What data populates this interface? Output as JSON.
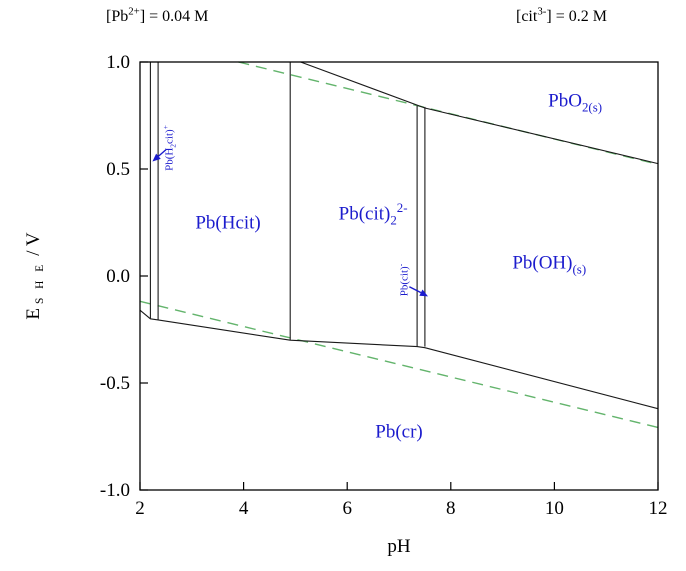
{
  "header": {
    "left_segments": [
      {
        "t": "[Pb"
      },
      {
        "t": "2+",
        "s": "sup"
      },
      {
        "t": "] = 0.04 M"
      }
    ],
    "right_segments": [
      {
        "t": "[cit"
      },
      {
        "t": "3-",
        "s": "sup"
      },
      {
        "t": "] = 0.2 M"
      }
    ]
  },
  "axes": {
    "y_title_segments": [
      {
        "t": "E"
      },
      {
        "t": "S H E",
        "s": "she"
      },
      {
        "t": "/  V"
      }
    ],
    "x_title": "pH"
  },
  "chart_data": {
    "type": "line",
    "title": "Pourbaix (Eh-pH) diagram for lead-citrate system",
    "xlabel": "pH",
    "ylabel": "E_SHE / V",
    "xlim": [
      2,
      12
    ],
    "ylim": [
      -1.0,
      1.0
    ],
    "grid": false,
    "x_ticks": [
      2,
      4,
      6,
      8,
      10,
      12
    ],
    "x_tick_labels": [
      "2",
      "4",
      "6",
      "8",
      "10",
      "12"
    ],
    "y_ticks": [
      1.0,
      0.5,
      0.0,
      -0.5,
      -1.0
    ],
    "y_tick_labels": [
      "1.0",
      "0.5",
      "0.0",
      "-0.5",
      "-1.0"
    ],
    "colors": {
      "boundary": "#1a1a1a",
      "water_line": "#63b46c",
      "label": "#1c1ccd",
      "axis": "#000000"
    },
    "series": [
      {
        "name": "pb-h2cit-left-boundary",
        "style": "solid",
        "points": [
          [
            2.2,
            1.0
          ],
          [
            2.2,
            -0.2
          ]
        ]
      },
      {
        "name": "pb-h2cit-right-boundary",
        "style": "solid",
        "points": [
          [
            2.35,
            1.0
          ],
          [
            2.35,
            -0.205
          ]
        ]
      },
      {
        "name": "pbhcit-pbcit2-boundary",
        "style": "solid",
        "points": [
          [
            4.9,
            1.0
          ],
          [
            4.9,
            -0.3
          ]
        ]
      },
      {
        "name": "pbcit-left-boundary",
        "style": "solid",
        "points": [
          [
            7.35,
            0.795
          ],
          [
            7.35,
            -0.33
          ]
        ]
      },
      {
        "name": "pbcit-right-boundary",
        "style": "solid",
        "points": [
          [
            7.5,
            0.79
          ],
          [
            7.5,
            -0.33
          ]
        ]
      },
      {
        "name": "pbo2-boundary",
        "style": "solid",
        "points": [
          [
            5.1,
            1.0
          ],
          [
            7.5,
            0.785
          ],
          [
            12,
            0.525
          ]
        ]
      },
      {
        "name": "pbcr-boundary",
        "style": "solid",
        "points": [
          [
            2,
            -0.16
          ],
          [
            2.2,
            -0.2
          ],
          [
            2.35,
            -0.205
          ],
          [
            4.9,
            -0.3
          ],
          [
            7.35,
            -0.33
          ],
          [
            7.5,
            -0.335
          ],
          [
            12,
            -0.62
          ]
        ]
      },
      {
        "name": "o2-h2o-water-line",
        "style": "dashed",
        "points": [
          [
            3.9,
            1.0
          ],
          [
            12,
            0.522
          ]
        ]
      },
      {
        "name": "h2-h2o-water-line",
        "style": "dashed",
        "points": [
          [
            2,
            -0.118
          ],
          [
            12,
            -0.708
          ]
        ]
      }
    ],
    "region_labels": [
      {
        "id": "pbo2",
        "x": 10.4,
        "y": 0.82,
        "rot": 0,
        "size": 19,
        "segments": [
          {
            "t": "PbO"
          },
          {
            "t": "2(s)",
            "s": "sub"
          }
        ]
      },
      {
        "id": "pbhcit",
        "x": 3.7,
        "y": 0.25,
        "rot": 0,
        "size": 19,
        "segments": [
          {
            "t": "Pb(Hcit)"
          }
        ]
      },
      {
        "id": "pbcit2",
        "x": 6.5,
        "y": 0.29,
        "rot": 0,
        "size": 19,
        "segments": [
          {
            "t": "Pb(cit)"
          },
          {
            "t": "2",
            "s": "sub"
          },
          {
            "t": "2-",
            "s": "sup"
          }
        ]
      },
      {
        "id": "pboh",
        "x": 9.9,
        "y": 0.06,
        "rot": 0,
        "size": 19,
        "segments": [
          {
            "t": "Pb(OH)"
          },
          {
            "t": "(s)",
            "s": "sub"
          }
        ]
      },
      {
        "id": "pbcr",
        "x": 7.0,
        "y": -0.73,
        "rot": 0,
        "size": 19,
        "segments": [
          {
            "t": "Pb(cr)"
          }
        ]
      },
      {
        "id": "pbh2cit",
        "x": 2.58,
        "y": 0.6,
        "rot": -90,
        "size": 11,
        "segments": [
          {
            "t": "Pb(H"
          },
          {
            "t": "2",
            "s": "sub"
          },
          {
            "t": "cit)"
          },
          {
            "t": "+",
            "s": "sup"
          }
        ]
      },
      {
        "id": "pbcit",
        "x": 7.12,
        "y": -0.02,
        "rot": -90,
        "size": 11,
        "segments": [
          {
            "t": "Pb(cit)"
          },
          {
            "t": "-",
            "s": "sup"
          }
        ]
      }
    ],
    "arrows": [
      {
        "name": "pb-h2cit-arrow",
        "from": [
          2.5,
          0.59
        ],
        "to": [
          2.24,
          0.535
        ]
      },
      {
        "name": "pb-cit-arrow",
        "from": [
          7.2,
          -0.05
        ],
        "to": [
          7.56,
          -0.095
        ]
      }
    ]
  }
}
